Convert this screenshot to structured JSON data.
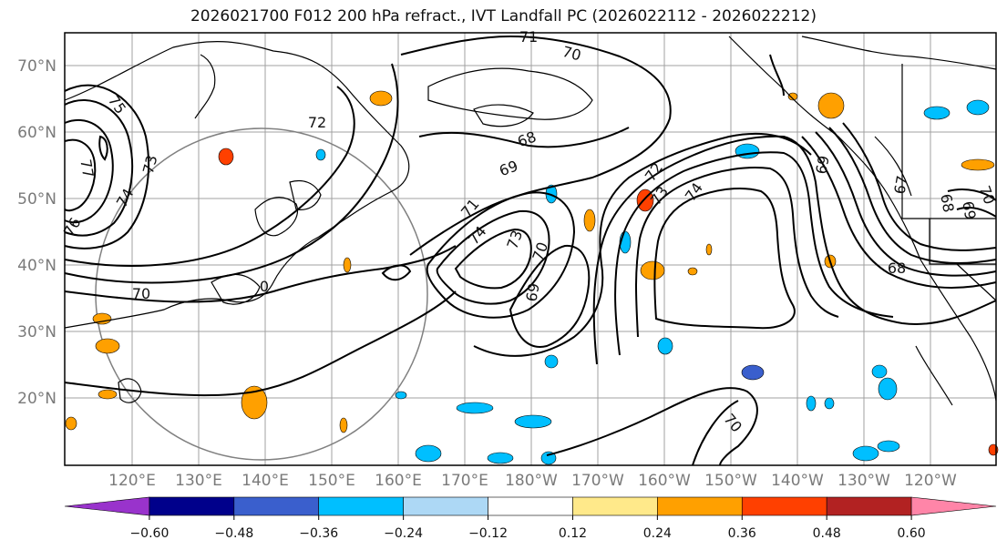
{
  "title": "2026021700 F012 200 hPa refract., IVT Landfall PC (2026022112 - 2026022212)",
  "map": {
    "lat_labels": [
      "70°N",
      "60°N",
      "50°N",
      "40°N",
      "30°N",
      "20°N"
    ],
    "lon_labels": [
      "120°E",
      "130°E",
      "140°E",
      "150°E",
      "160°E",
      "170°E",
      "180°W",
      "170°W",
      "160°W",
      "150°W",
      "140°W",
      "130°W",
      "120°W"
    ],
    "contour_labels": [
      "71",
      "70",
      "75",
      "77",
      "73",
      "76",
      "74",
      "72",
      "68",
      "69",
      "74",
      "73",
      "70",
      "69",
      "70",
      "72",
      "73",
      "74",
      "69",
      "67",
      "69",
      "68",
      "70",
      "0",
      "70",
      "71",
      "68"
    ],
    "contour_units": "200 hPa refractivity",
    "lat_range": [
      10,
      75
    ],
    "lon_range_east": [
      110,
      250
    ]
  },
  "colorbar": {
    "ticks": [
      "−0.60",
      "−0.48",
      "−0.36",
      "−0.24",
      "−0.12",
      "0.12",
      "0.24",
      "0.36",
      "0.48",
      "0.60"
    ],
    "colors": [
      "#9933cc",
      "#00008b",
      "#3a5fcd",
      "#00bfff",
      "#add8f5",
      "#ffffff",
      "#ffe98a",
      "#ffa000",
      "#ff4000",
      "#b22222",
      "#ff85a8"
    ]
  }
}
